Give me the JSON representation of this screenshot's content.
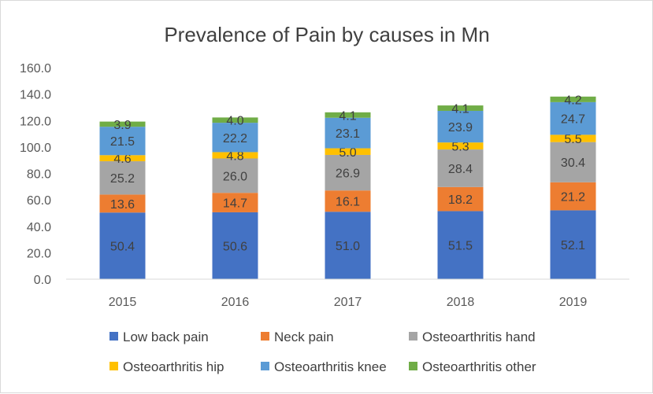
{
  "chart_data": {
    "type": "bar",
    "stacked": true,
    "title": "Prevalence of Pain by causes in Mn",
    "xlabel": "",
    "ylabel": "",
    "ylim": [
      0,
      160
    ],
    "yticks": [
      "0.0",
      "20.0",
      "40.0",
      "60.0",
      "80.0",
      "100.0",
      "120.0",
      "140.0",
      "160.0"
    ],
    "grid": false,
    "legend_position": "bottom",
    "categories": [
      "2015",
      "2016",
      "2017",
      "2018",
      "2019"
    ],
    "series": [
      {
        "name": "Low back pain",
        "color": "#4472C4",
        "values": [
          50.4,
          50.6,
          51.0,
          51.5,
          52.1
        ],
        "labels": [
          "50.4",
          "50.6",
          "51.0",
          "51.5",
          "52.1"
        ]
      },
      {
        "name": "Neck pain",
        "color": "#ED7D31",
        "values": [
          13.6,
          14.7,
          16.1,
          18.2,
          21.2
        ],
        "labels": [
          "13.6",
          "14.7",
          "16.1",
          "18.2",
          "21.2"
        ]
      },
      {
        "name": "Osteoarthritis hand",
        "color": "#A5A5A5",
        "values": [
          25.2,
          26.0,
          26.9,
          28.4,
          30.4
        ],
        "labels": [
          "25.2",
          "26.0",
          "26.9",
          "28.4",
          "30.4"
        ]
      },
      {
        "name": "Osteoarthritis hip",
        "color": "#FFC000",
        "values": [
          4.6,
          4.8,
          5.0,
          5.3,
          5.5
        ],
        "labels": [
          "4.6",
          "4.8",
          "5.0",
          "5.3",
          "5.5"
        ]
      },
      {
        "name": "Osteoarthritis knee",
        "color": "#5B9BD5",
        "values": [
          21.5,
          22.2,
          23.1,
          23.9,
          24.7
        ],
        "labels": [
          "21.5",
          "22.2",
          "23.1",
          "23.9",
          "24.7"
        ]
      },
      {
        "name": "Osteoarthritis other",
        "color": "#70AD47",
        "values": [
          3.9,
          4.0,
          4.1,
          4.1,
          4.2
        ],
        "labels": [
          "3.9",
          "4.0",
          "4.1",
          "4.1",
          "4.2"
        ]
      }
    ]
  }
}
